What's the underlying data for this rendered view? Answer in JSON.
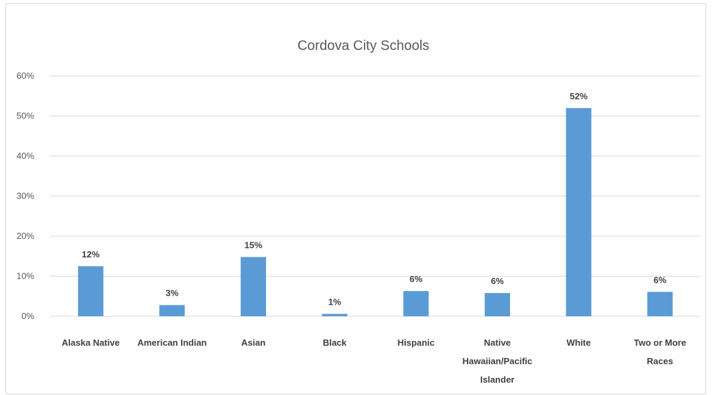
{
  "chart_data": {
    "type": "bar",
    "title": "Cordova City Schools",
    "categories": [
      "Alaska Native",
      "American Indian",
      "Asian",
      "Black",
      "Hispanic",
      "Native Hawaiian/Pacific Islander",
      "White",
      "Two or More Races"
    ],
    "values": [
      12.5,
      2.8,
      14.8,
      0.6,
      6.3,
      5.8,
      52,
      6.1
    ],
    "data_labels": [
      "12%",
      "3%",
      "15%",
      "1%",
      "6%",
      "6%",
      "52%",
      "6%"
    ],
    "yticks": [
      "0%",
      "10%",
      "20%",
      "30%",
      "40%",
      "50%",
      "60%"
    ],
    "ylim": [
      0,
      60
    ],
    "xlabel": "",
    "ylabel": "",
    "grid": true,
    "legend": "none",
    "bar_color": "#5b9bd5",
    "grid_color": "#d9d9d9"
  }
}
